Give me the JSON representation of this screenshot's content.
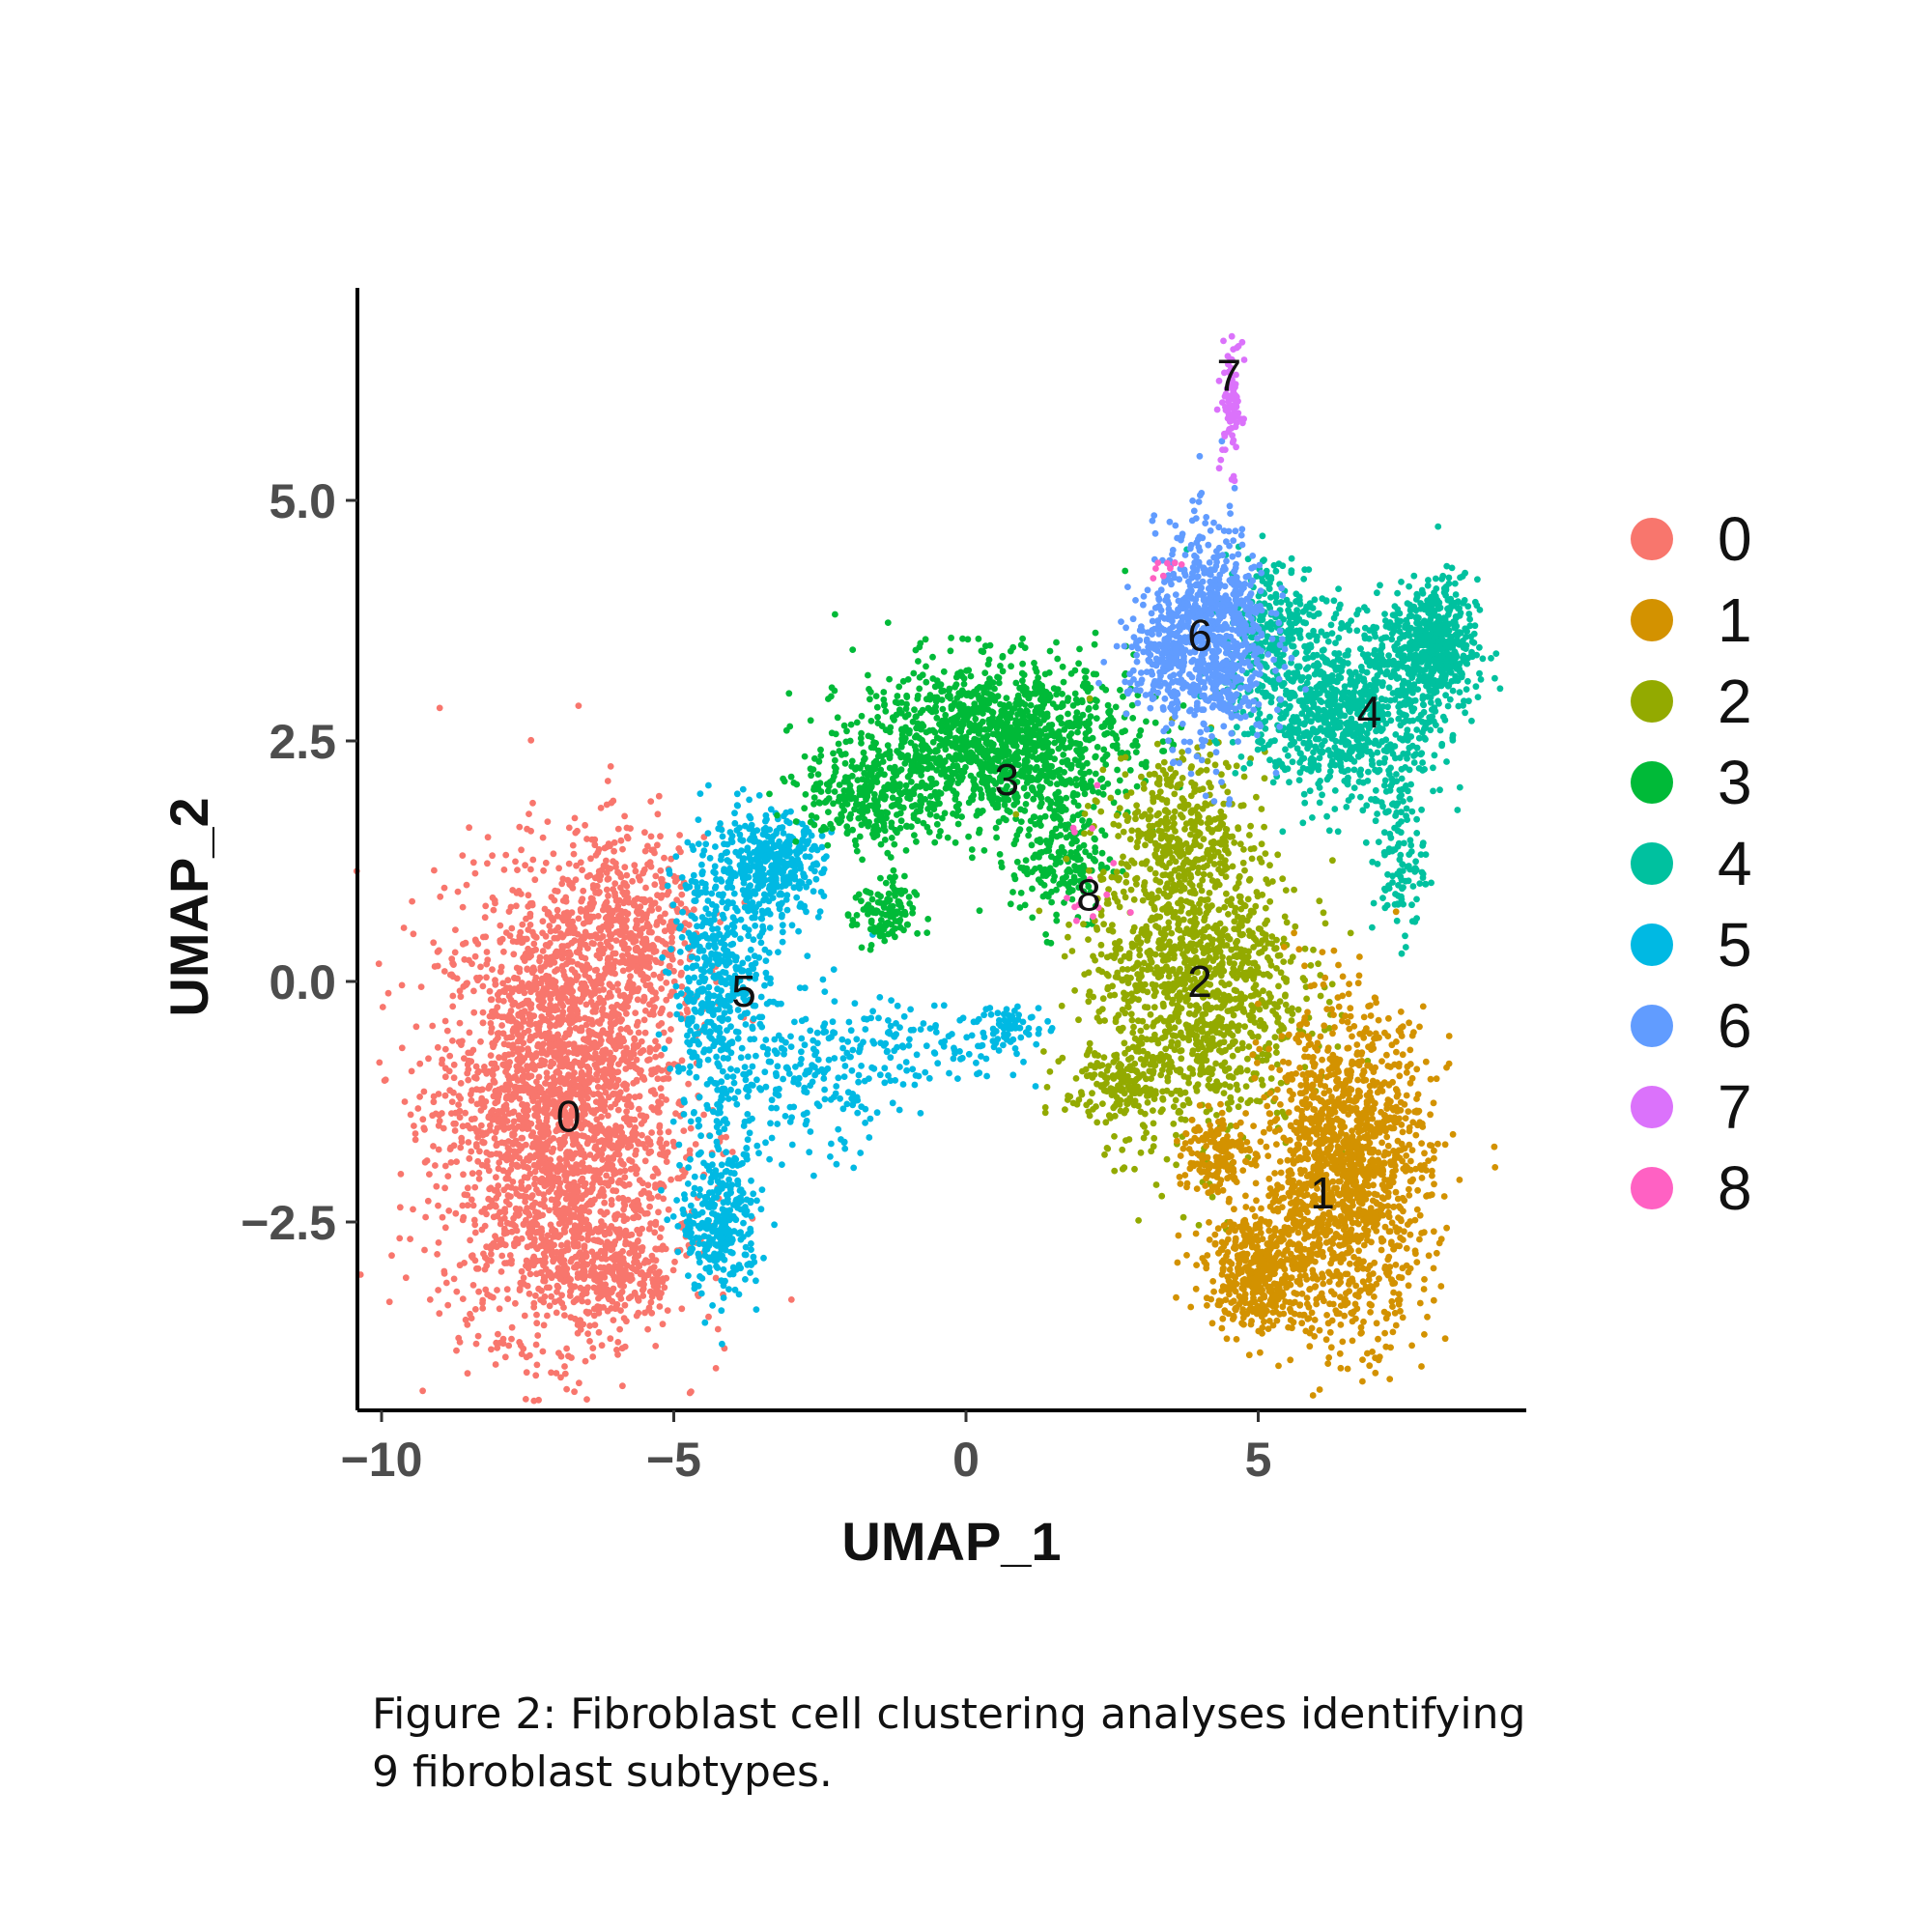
{
  "chart_data": {
    "type": "scatter",
    "title": "",
    "xlabel": "UMAP_1",
    "ylabel": "UMAP_2",
    "xlim": [
      -10.5,
      9.5
    ],
    "ylim": [
      -4.4,
      7.1
    ],
    "xticks": [
      -10,
      -5,
      0,
      5
    ],
    "xtick_labels": [
      "−10",
      "−5",
      "0",
      "5"
    ],
    "yticks": [
      -2.5,
      0.0,
      2.5,
      5.0
    ],
    "ytick_labels": [
      "−2.5",
      "0.0",
      "2.5",
      "5.0"
    ],
    "grid": false,
    "legend_position": "right",
    "clusters": [
      {
        "name": "0",
        "color": "#F8766D",
        "center": [
          -6.8,
          -1.4
        ]
      },
      {
        "name": "1",
        "color": "#D39200",
        "center": [
          6.1,
          -2.2
        ]
      },
      {
        "name": "2",
        "color": "#93AA00",
        "center": [
          4.0,
          0.0
        ]
      },
      {
        "name": "3",
        "color": "#00BA38",
        "center": [
          0.7,
          2.1
        ]
      },
      {
        "name": "4",
        "color": "#00C19F",
        "center": [
          6.9,
          2.8
        ]
      },
      {
        "name": "5",
        "color": "#00B9E3",
        "center": [
          -3.8,
          -0.1
        ]
      },
      {
        "name": "6",
        "color": "#619CFF",
        "center": [
          4.0,
          3.6
        ]
      },
      {
        "name": "7",
        "color": "#DB72FB",
        "center": [
          4.5,
          6.3
        ]
      },
      {
        "name": "8",
        "color": "#FF61C3",
        "center": [
          2.1,
          0.9
        ]
      }
    ]
  },
  "caption": {
    "line1": "Figure 2: Fibroblast cell clustering analyses identifying",
    "line2": "9 fibroblast subtypes."
  }
}
